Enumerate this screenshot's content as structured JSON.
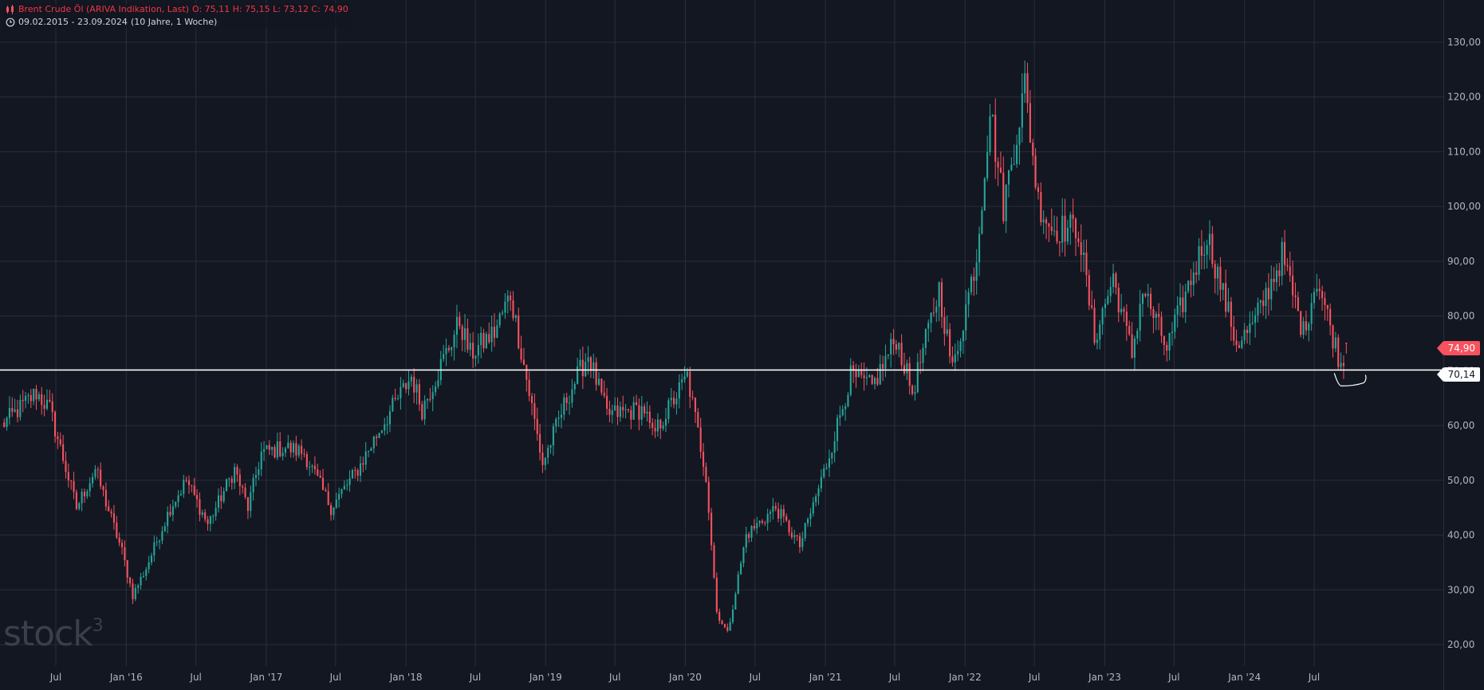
{
  "legend": {
    "title": "Brent Crude Öl (ARIVA Indikation, Last)",
    "ohlc": "O: 75,11  H: 75,15  L: 73,12  C: 74,90",
    "range": "09.02.2015 - 23.09.2024",
    "interval": "(10 Jahre, 1 Woche)"
  },
  "watermark": {
    "text": "stock",
    "sup": "3"
  },
  "price_tags": {
    "current": "74,90",
    "horizontal_line": "70,14"
  },
  "colors": {
    "background": "#131722",
    "up": "#26a69a",
    "down": "#f7525f",
    "grid": "#2a2e39",
    "axis_text": "#b2b5be",
    "hline": "#ffffff"
  },
  "chart_data": {
    "type": "candlestick",
    "interval": "1 Woche",
    "ylim": [
      15,
      137
    ],
    "y_ticks": [
      "20,00",
      "30,00",
      "40,00",
      "50,00",
      "60,00",
      "70,00",
      "80,00",
      "90,00",
      "100,00",
      "110,00",
      "120,00",
      "130,00"
    ],
    "x_ticks": [
      {
        "label": "Jul",
        "date": "2015-07-01"
      },
      {
        "label": "Jan '16",
        "date": "2016-01-01"
      },
      {
        "label": "Jul",
        "date": "2016-07-01"
      },
      {
        "label": "Jan '17",
        "date": "2017-01-01"
      },
      {
        "label": "Jul",
        "date": "2017-07-01"
      },
      {
        "label": "Jan '18",
        "date": "2018-01-01"
      },
      {
        "label": "Jul",
        "date": "2018-07-01"
      },
      {
        "label": "Jan '19",
        "date": "2019-01-01"
      },
      {
        "label": "Jul",
        "date": "2019-07-01"
      },
      {
        "label": "Jan '20",
        "date": "2020-01-01"
      },
      {
        "label": "Jul",
        "date": "2020-07-01"
      },
      {
        "label": "Jan '21",
        "date": "2021-01-01"
      },
      {
        "label": "Jul",
        "date": "2021-07-01"
      },
      {
        "label": "Jan '22",
        "date": "2022-01-01"
      },
      {
        "label": "Jul",
        "date": "2022-07-01"
      },
      {
        "label": "Jan '23",
        "date": "2023-01-01"
      },
      {
        "label": "Jul",
        "date": "2023-07-01"
      },
      {
        "label": "Jan '24",
        "date": "2024-01-01"
      },
      {
        "label": "Jul",
        "date": "2024-07-01"
      }
    ],
    "horizontal_line": 70.14,
    "last": {
      "open": 75.11,
      "high": 75.15,
      "low": 73.12,
      "close": 74.9
    },
    "close_path": [
      [
        "2015-02-09",
        60
      ],
      [
        "2015-05-11",
        66
      ],
      [
        "2015-06-15",
        63
      ],
      [
        "2015-08-24",
        45
      ],
      [
        "2015-10-12",
        52
      ],
      [
        "2015-12-21",
        37
      ],
      [
        "2016-01-18",
        29
      ],
      [
        "2016-02-22",
        34
      ],
      [
        "2016-04-25",
        45
      ],
      [
        "2016-06-06",
        50
      ],
      [
        "2016-08-01",
        42
      ],
      [
        "2016-10-10",
        52
      ],
      [
        "2016-11-14",
        45
      ],
      [
        "2016-12-19",
        55
      ],
      [
        "2017-02-20",
        56
      ],
      [
        "2017-04-10",
        55
      ],
      [
        "2017-06-19",
        45
      ],
      [
        "2017-08-28",
        52
      ],
      [
        "2017-10-30",
        60
      ],
      [
        "2018-01-15",
        69
      ],
      [
        "2018-02-12",
        63
      ],
      [
        "2018-05-21",
        79
      ],
      [
        "2018-06-18",
        73
      ],
      [
        "2018-08-20",
        77
      ],
      [
        "2018-10-01",
        84
      ],
      [
        "2018-12-24",
        53
      ],
      [
        "2019-02-25",
        65
      ],
      [
        "2019-04-22",
        73
      ],
      [
        "2019-06-10",
        62
      ],
      [
        "2019-09-16",
        63
      ],
      [
        "2019-10-07",
        58
      ],
      [
        "2020-01-06",
        69
      ],
      [
        "2020-02-24",
        51
      ],
      [
        "2020-03-23",
        26
      ],
      [
        "2020-04-20",
        22
      ],
      [
        "2020-06-08",
        40
      ],
      [
        "2020-08-24",
        45
      ],
      [
        "2020-10-26",
        38
      ],
      [
        "2021-01-04",
        53
      ],
      [
        "2021-03-08",
        69
      ],
      [
        "2021-05-03",
        67
      ],
      [
        "2021-07-05",
        76
      ],
      [
        "2021-08-16",
        66
      ],
      [
        "2021-10-25",
        85
      ],
      [
        "2021-11-29",
        70
      ],
      [
        "2022-01-31",
        91
      ],
      [
        "2022-03-07",
        118
      ],
      [
        "2022-04-11",
        100
      ],
      [
        "2022-06-06",
        122
      ],
      [
        "2022-07-11",
        101
      ],
      [
        "2022-08-15",
        96
      ],
      [
        "2022-10-24",
        96
      ],
      [
        "2022-12-05",
        76
      ],
      [
        "2023-01-23",
        87
      ],
      [
        "2023-03-13",
        73
      ],
      [
        "2023-04-10",
        85
      ],
      [
        "2023-06-12",
        74
      ],
      [
        "2023-07-31",
        84
      ],
      [
        "2023-09-25",
        95
      ],
      [
        "2023-11-06",
        84
      ],
      [
        "2023-12-11",
        75
      ],
      [
        "2024-01-22",
        78
      ],
      [
        "2024-04-08",
        91
      ],
      [
        "2024-06-03",
        77
      ],
      [
        "2024-07-08",
        87
      ],
      [
        "2024-09-09",
        71
      ],
      [
        "2024-09-23",
        74.9
      ]
    ],
    "annotation": {
      "type": "curve",
      "near": "2024-09-23",
      "below_price": 70.14
    }
  }
}
